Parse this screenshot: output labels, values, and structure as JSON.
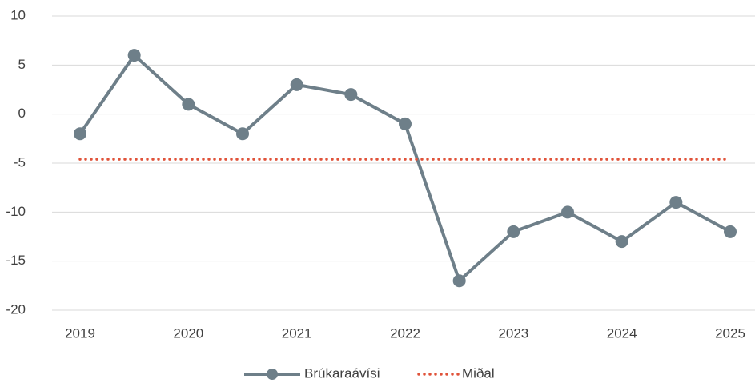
{
  "chart_data": {
    "type": "line",
    "categories": [
      "2019",
      null,
      "2020",
      null,
      "2021",
      null,
      "2022",
      null,
      "2023",
      null,
      "2024",
      null,
      "2025"
    ],
    "series": [
      {
        "name": "Brúkaraávísi",
        "color": "#6e7f89",
        "values": [
          -2,
          6,
          1,
          -2,
          3,
          2,
          -1,
          -17,
          -12,
          -10,
          -13,
          -9,
          -12
        ]
      },
      {
        "name": "Miðal",
        "color": "#e0533a",
        "dashed": true,
        "values": [
          -4.6,
          -4.6,
          -4.6,
          -4.6,
          -4.6,
          -4.6,
          -4.6,
          -4.6,
          -4.6,
          -4.6,
          -4.6,
          -4.6,
          -4.6
        ]
      }
    ],
    "ylim": [
      -20,
      10
    ],
    "yticks": [
      -20,
      -15,
      -10,
      -5,
      0,
      5,
      10
    ],
    "grid": true,
    "legend": "bottom"
  }
}
